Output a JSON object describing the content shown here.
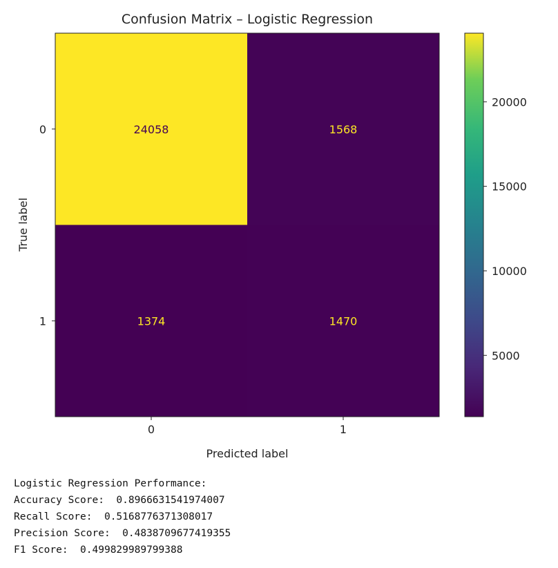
{
  "chart_data": {
    "type": "heatmap",
    "title": "Confusion Matrix – Logistic Regression",
    "xlabel": "Predicted label",
    "ylabel": "True label",
    "x_categories": [
      "0",
      "1"
    ],
    "y_categories": [
      "0",
      "1"
    ],
    "values": [
      [
        24058,
        1568
      ],
      [
        1374,
        1470
      ]
    ],
    "colormap": "viridis",
    "colorbar": {
      "min": 1374,
      "max": 24058,
      "ticks": [
        5000,
        10000,
        15000,
        20000
      ],
      "tick_labels": [
        "5000",
        "10000",
        "15000",
        "20000"
      ]
    }
  },
  "output": {
    "heading": "Logistic Regression Performance:",
    "lines": [
      {
        "label": "Accuracy Score:",
        "value": "0.8966631541974007"
      },
      {
        "label": "Recall Score:",
        "value": "0.5168776371308017"
      },
      {
        "label": "Precision Score:",
        "value": "0.4838709677419355"
      },
      {
        "label": "F1 Score:",
        "value": "0.499829989799388"
      }
    ]
  }
}
